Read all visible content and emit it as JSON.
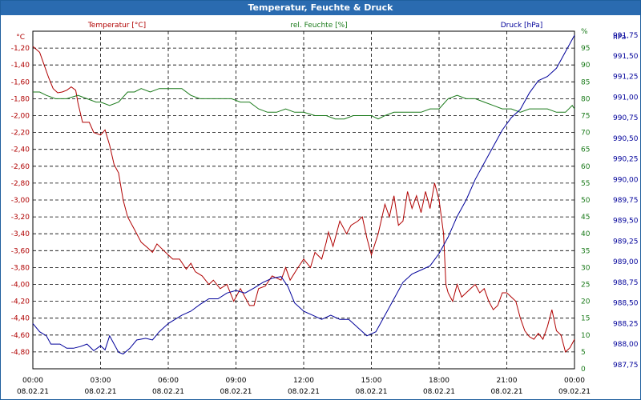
{
  "window": {
    "title": "Temperatur, Feuchte & Druck"
  },
  "colors": {
    "temperature": "#b00000",
    "humidity": "#1a7a1a",
    "pressure": "#00009a",
    "title_bar": "#2a6bb0"
  },
  "chart_data": {
    "type": "line",
    "title": "Temperatur, Feuchte & Druck",
    "grid": true,
    "x": {
      "ticks": [
        {
          "time": "00:00",
          "date": "08.02.21"
        },
        {
          "time": "03:00",
          "date": "08.02.21"
        },
        {
          "time": "06:00",
          "date": "08.02.21"
        },
        {
          "time": "09:00",
          "date": "08.02.21"
        },
        {
          "time": "12:00",
          "date": "08.02.21"
        },
        {
          "time": "15:00",
          "date": "08.02.21"
        },
        {
          "time": "18:00",
          "date": "08.02.21"
        },
        {
          "time": "21:00",
          "date": "08.02.21"
        },
        {
          "time": "00:00",
          "date": "09.02.21"
        }
      ],
      "range_hours": [
        0,
        24
      ]
    },
    "axes": {
      "left": {
        "unit": "°C",
        "min": -5.0,
        "max": -1.0,
        "ticks": [
          "-1,20",
          "-1,40",
          "-1,60",
          "-1,80",
          "-2,00",
          "-2,20",
          "-2,40",
          "-2,60",
          "-2,80",
          "-3,00",
          "-3,20",
          "-3,40",
          "-3,60",
          "-3,80",
          "-4,00",
          "-4,20",
          "-4,40",
          "-4,60",
          "-4,80"
        ]
      },
      "mid": {
        "unit": "%",
        "min": 0,
        "max": 100,
        "ticks": [
          "%",
          "95",
          "90",
          "85",
          "80",
          "75",
          "70",
          "65",
          "60",
          "55",
          "50",
          "45",
          "40",
          "35",
          "30",
          "25",
          "20",
          "15",
          "10",
          "5",
          "0"
        ]
      },
      "right": {
        "unit": "hPa",
        "min": 987.7,
        "max": 991.8,
        "ticks": [
          "991,75",
          "991,50",
          "991,25",
          "991,00",
          "990,75",
          "990,50",
          "990,25",
          "990,00",
          "989,75",
          "989,50",
          "989,25",
          "989,00",
          "988,75",
          "988,50",
          "988,25",
          "988,00",
          "987,75"
        ]
      }
    },
    "series": [
      {
        "name": "Temperatur [°C]",
        "axis": "left",
        "points": [
          [
            0.0,
            -1.18
          ],
          [
            0.3,
            -1.25
          ],
          [
            0.5,
            -1.4
          ],
          [
            0.7,
            -1.55
          ],
          [
            0.9,
            -1.68
          ],
          [
            1.1,
            -1.73
          ],
          [
            1.3,
            -1.72
          ],
          [
            1.5,
            -1.7
          ],
          [
            1.7,
            -1.66
          ],
          [
            1.9,
            -1.7
          ],
          [
            2.0,
            -1.85
          ],
          [
            2.2,
            -2.08
          ],
          [
            2.5,
            -2.08
          ],
          [
            2.7,
            -2.2
          ],
          [
            3.0,
            -2.23
          ],
          [
            3.2,
            -2.17
          ],
          [
            3.4,
            -2.35
          ],
          [
            3.6,
            -2.58
          ],
          [
            3.8,
            -2.68
          ],
          [
            4.0,
            -3.0
          ],
          [
            4.2,
            -3.2
          ],
          [
            4.5,
            -3.35
          ],
          [
            4.8,
            -3.5
          ],
          [
            5.1,
            -3.57
          ],
          [
            5.3,
            -3.62
          ],
          [
            5.5,
            -3.52
          ],
          [
            5.8,
            -3.6
          ],
          [
            6.0,
            -3.65
          ],
          [
            6.2,
            -3.7
          ],
          [
            6.5,
            -3.7
          ],
          [
            6.8,
            -3.82
          ],
          [
            7.0,
            -3.75
          ],
          [
            7.2,
            -3.85
          ],
          [
            7.5,
            -3.9
          ],
          [
            7.8,
            -4.0
          ],
          [
            8.0,
            -3.95
          ],
          [
            8.3,
            -4.05
          ],
          [
            8.6,
            -4.0
          ],
          [
            8.9,
            -4.2
          ],
          [
            9.2,
            -4.05
          ],
          [
            9.6,
            -4.25
          ],
          [
            9.8,
            -4.25
          ],
          [
            10.0,
            -4.05
          ],
          [
            10.3,
            -4.02
          ],
          [
            10.6,
            -3.9
          ],
          [
            11.0,
            -3.95
          ],
          [
            11.2,
            -3.8
          ],
          [
            11.4,
            -3.95
          ],
          [
            11.7,
            -3.82
          ],
          [
            12.0,
            -3.7
          ],
          [
            12.3,
            -3.8
          ],
          [
            12.5,
            -3.62
          ],
          [
            12.8,
            -3.7
          ],
          [
            13.0,
            -3.5
          ],
          [
            13.1,
            -3.38
          ],
          [
            13.3,
            -3.55
          ],
          [
            13.6,
            -3.25
          ],
          [
            13.9,
            -3.4
          ],
          [
            14.1,
            -3.3
          ],
          [
            14.4,
            -3.25
          ],
          [
            14.6,
            -3.2
          ],
          [
            14.8,
            -3.45
          ],
          [
            15.0,
            -3.65
          ],
          [
            15.3,
            -3.4
          ],
          [
            15.6,
            -3.05
          ],
          [
            15.8,
            -3.2
          ],
          [
            16.0,
            -2.95
          ],
          [
            16.2,
            -3.3
          ],
          [
            16.4,
            -3.25
          ],
          [
            16.6,
            -2.9
          ],
          [
            16.8,
            -3.1
          ],
          [
            17.0,
            -2.95
          ],
          [
            17.2,
            -3.15
          ],
          [
            17.4,
            -2.9
          ],
          [
            17.6,
            -3.1
          ],
          [
            17.8,
            -2.8
          ],
          [
            17.9,
            -2.9
          ],
          [
            18.0,
            -3.0
          ],
          [
            18.2,
            -3.4
          ],
          [
            18.3,
            -4.0
          ],
          [
            18.4,
            -4.1
          ],
          [
            18.6,
            -4.2
          ],
          [
            18.8,
            -4.0
          ],
          [
            19.0,
            -4.15
          ],
          [
            19.2,
            -4.1
          ],
          [
            19.4,
            -4.05
          ],
          [
            19.6,
            -4.0
          ],
          [
            19.8,
            -4.1
          ],
          [
            20.0,
            -4.05
          ],
          [
            20.2,
            -4.2
          ],
          [
            20.4,
            -4.3
          ],
          [
            20.6,
            -4.25
          ],
          [
            20.8,
            -4.1
          ],
          [
            21.0,
            -4.1
          ],
          [
            21.2,
            -4.15
          ],
          [
            21.4,
            -4.2
          ],
          [
            21.6,
            -4.4
          ],
          [
            21.8,
            -4.55
          ],
          [
            22.0,
            -4.62
          ],
          [
            22.2,
            -4.65
          ],
          [
            22.4,
            -4.58
          ],
          [
            22.6,
            -4.65
          ],
          [
            22.8,
            -4.5
          ],
          [
            23.0,
            -4.3
          ],
          [
            23.2,
            -4.55
          ],
          [
            23.4,
            -4.6
          ],
          [
            23.6,
            -4.8
          ],
          [
            23.8,
            -4.75
          ],
          [
            24.0,
            -4.65
          ]
        ]
      },
      {
        "name": "rel. Feuchte [%]",
        "axis": "mid",
        "points": [
          [
            0.0,
            82
          ],
          [
            0.3,
            82
          ],
          [
            0.6,
            81
          ],
          [
            1.0,
            80
          ],
          [
            1.5,
            80
          ],
          [
            2.0,
            81
          ],
          [
            2.4,
            80
          ],
          [
            2.8,
            79
          ],
          [
            3.0,
            79
          ],
          [
            3.4,
            78
          ],
          [
            3.8,
            79
          ],
          [
            4.2,
            82
          ],
          [
            4.5,
            82
          ],
          [
            4.8,
            83
          ],
          [
            5.2,
            82
          ],
          [
            5.6,
            83
          ],
          [
            6.0,
            83
          ],
          [
            6.3,
            83
          ],
          [
            6.6,
            83
          ],
          [
            7.0,
            81
          ],
          [
            7.4,
            80
          ],
          [
            7.8,
            80
          ],
          [
            8.2,
            80
          ],
          [
            8.5,
            80
          ],
          [
            8.8,
            80
          ],
          [
            9.2,
            79
          ],
          [
            9.6,
            79
          ],
          [
            10.0,
            77
          ],
          [
            10.4,
            76
          ],
          [
            10.8,
            76
          ],
          [
            11.2,
            77
          ],
          [
            11.6,
            76
          ],
          [
            12.0,
            76
          ],
          [
            12.5,
            75
          ],
          [
            13.0,
            75
          ],
          [
            13.4,
            74
          ],
          [
            13.8,
            74
          ],
          [
            14.2,
            75
          ],
          [
            14.6,
            75
          ],
          [
            15.0,
            75
          ],
          [
            15.3,
            74
          ],
          [
            15.6,
            75
          ],
          [
            16.0,
            76
          ],
          [
            16.4,
            76
          ],
          [
            16.8,
            76
          ],
          [
            17.2,
            76
          ],
          [
            17.6,
            77
          ],
          [
            18.0,
            77
          ],
          [
            18.4,
            80
          ],
          [
            18.8,
            81
          ],
          [
            19.2,
            80
          ],
          [
            19.6,
            80
          ],
          [
            20.0,
            79
          ],
          [
            20.4,
            78
          ],
          [
            20.8,
            77
          ],
          [
            21.2,
            77
          ],
          [
            21.6,
            76
          ],
          [
            22.0,
            77
          ],
          [
            22.4,
            77
          ],
          [
            22.8,
            77
          ],
          [
            23.2,
            76
          ],
          [
            23.6,
            76
          ],
          [
            23.9,
            78
          ],
          [
            24.0,
            77
          ]
        ]
      },
      {
        "name": "Druck [hPa]",
        "axis": "right",
        "points": [
          [
            0.0,
            988.25
          ],
          [
            0.3,
            988.15
          ],
          [
            0.6,
            988.1
          ],
          [
            0.8,
            988.0
          ],
          [
            1.2,
            988.0
          ],
          [
            1.5,
            987.95
          ],
          [
            1.8,
            987.95
          ],
          [
            2.1,
            987.97
          ],
          [
            2.4,
            988.0
          ],
          [
            2.7,
            987.92
          ],
          [
            3.0,
            987.98
          ],
          [
            3.2,
            987.93
          ],
          [
            3.4,
            988.1
          ],
          [
            3.6,
            988.0
          ],
          [
            3.8,
            987.9
          ],
          [
            4.0,
            987.88
          ],
          [
            4.3,
            987.95
          ],
          [
            4.6,
            988.05
          ],
          [
            5.0,
            988.07
          ],
          [
            5.3,
            988.05
          ],
          [
            5.6,
            988.15
          ],
          [
            6.0,
            988.25
          ],
          [
            6.3,
            988.3
          ],
          [
            6.6,
            988.35
          ],
          [
            7.0,
            988.4
          ],
          [
            7.4,
            988.48
          ],
          [
            7.8,
            988.55
          ],
          [
            8.2,
            988.55
          ],
          [
            8.6,
            988.62
          ],
          [
            9.0,
            988.65
          ],
          [
            9.4,
            988.62
          ],
          [
            9.8,
            988.68
          ],
          [
            10.2,
            988.75
          ],
          [
            10.6,
            988.8
          ],
          [
            11.0,
            988.82
          ],
          [
            11.3,
            988.7
          ],
          [
            11.6,
            988.5
          ],
          [
            12.0,
            988.4
          ],
          [
            12.4,
            988.35
          ],
          [
            12.8,
            988.3
          ],
          [
            13.2,
            988.35
          ],
          [
            13.6,
            988.3
          ],
          [
            14.0,
            988.3
          ],
          [
            14.4,
            988.2
          ],
          [
            14.8,
            988.1
          ],
          [
            15.2,
            988.15
          ],
          [
            15.6,
            988.35
          ],
          [
            16.0,
            988.55
          ],
          [
            16.4,
            988.75
          ],
          [
            16.8,
            988.85
          ],
          [
            17.2,
            988.9
          ],
          [
            17.6,
            988.95
          ],
          [
            18.0,
            989.1
          ],
          [
            18.4,
            989.3
          ],
          [
            18.8,
            989.55
          ],
          [
            19.2,
            989.75
          ],
          [
            19.6,
            990.0
          ],
          [
            20.0,
            990.2
          ],
          [
            20.4,
            990.4
          ],
          [
            20.8,
            990.6
          ],
          [
            21.2,
            990.75
          ],
          [
            21.6,
            990.85
          ],
          [
            22.0,
            991.05
          ],
          [
            22.4,
            991.2
          ],
          [
            22.8,
            991.25
          ],
          [
            23.2,
            991.35
          ],
          [
            23.6,
            991.55
          ],
          [
            24.0,
            991.75
          ]
        ]
      }
    ]
  }
}
